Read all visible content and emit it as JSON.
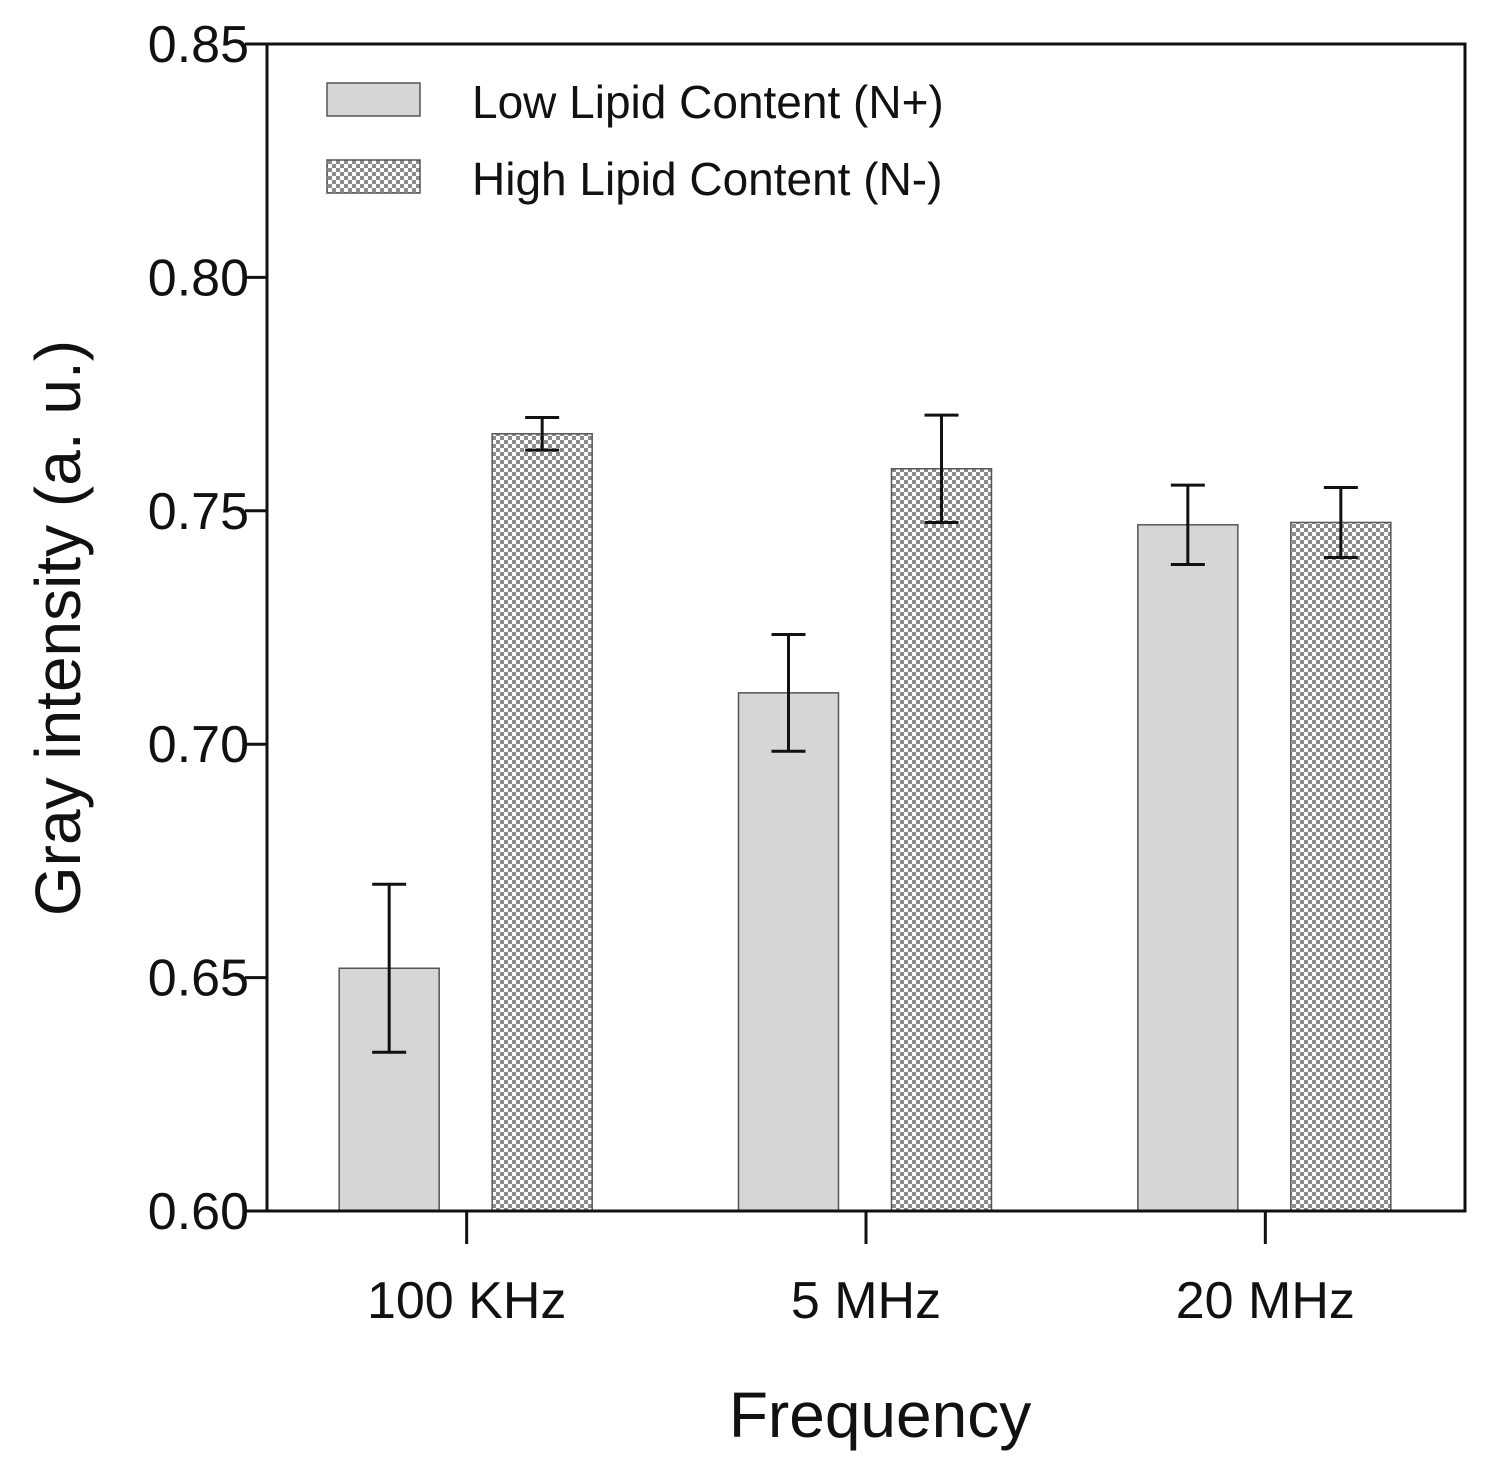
{
  "chart_data": {
    "type": "bar",
    "title": "",
    "xlabel": "Frequency",
    "ylabel": "Gray intensity (a. u.)",
    "ylim": [
      0.6,
      0.85
    ],
    "yticks": [
      "0.60",
      "0.65",
      "0.70",
      "0.75",
      "0.80",
      "0.85"
    ],
    "categories": [
      "100 KHz",
      "5 MHz",
      "20 MHz"
    ],
    "legend_position": "top-left",
    "series": [
      {
        "name": "Low Lipid Content (N+)",
        "pattern": "solid",
        "color": "#d6d6d6",
        "values": [
          0.652,
          0.711,
          0.747
        ],
        "errors": [
          0.018,
          0.0125,
          0.0085
        ]
      },
      {
        "name": "High Lipid Content (N-)",
        "pattern": "checkered",
        "color": "#9a9a9a",
        "values": [
          0.7665,
          0.759,
          0.7475
        ],
        "errors": [
          0.0035,
          0.0115,
          0.0075
        ]
      }
    ]
  }
}
